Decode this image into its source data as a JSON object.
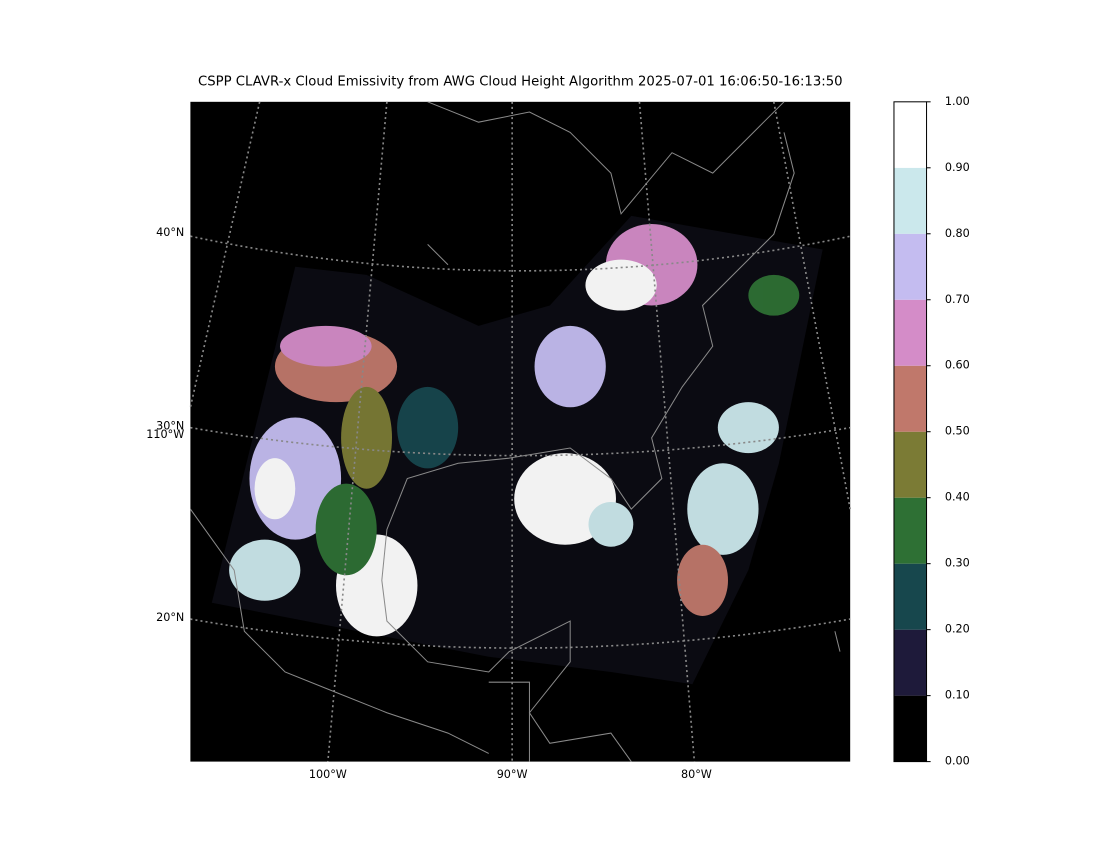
{
  "title": "CSPP CLAVR-x Cloud Emissivity from AWG Cloud Height Algorithm 2025-07-01 16:06:50-16:13:50",
  "latitude_labels": [
    "40°N",
    "30°N",
    "20°N"
  ],
  "longitude_labels": [
    "100°W",
    "90°W",
    "80°W"
  ],
  "extra_longitude_label": "110°W",
  "colorbar": {
    "ticks": [
      {
        "value": 0,
        "label": "0.00"
      },
      {
        "value": 0.1,
        "label": "0.10"
      },
      {
        "value": 0.2,
        "label": "0.20"
      },
      {
        "value": 0.3,
        "label": "0.30"
      },
      {
        "value": 0.4,
        "label": "0.40"
      },
      {
        "value": 0.5,
        "label": "0.50"
      },
      {
        "value": 0.6,
        "label": "0.60"
      },
      {
        "value": 0.7,
        "label": "0.70"
      },
      {
        "value": 0.8,
        "label": "0.80"
      },
      {
        "value": 0.9,
        "label": "0.90"
      },
      {
        "value": 1,
        "label": "1.00"
      }
    ],
    "colors": [
      "#000000",
      "#1e1a3a",
      "#17474d",
      "#2e7034",
      "#7b7b35",
      "#c0786b",
      "#d48cc8",
      "#c4bcf0",
      "#cbe8ec",
      "#ffffff"
    ],
    "lim": [
      0,
      1
    ]
  }
}
